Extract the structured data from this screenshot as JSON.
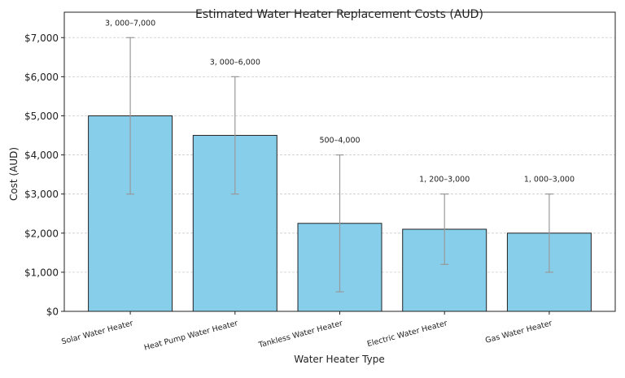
{
  "chart_data": {
    "type": "bar",
    "title": "Estimated Water Heater Replacement Costs (AUD)",
    "xlabel": "Water Heater Type",
    "ylabel": "Cost (AUD)",
    "categories": [
      "Solar Water Heater",
      "Heat Pump Water Heater",
      "Tankless Water Heater",
      "Electric Water Heater",
      "Gas Water Heater"
    ],
    "values": [
      5000,
      4500,
      2250,
      2100,
      2000
    ],
    "error_low": [
      3000,
      3000,
      500,
      1200,
      1000
    ],
    "error_high": [
      7000,
      6000,
      4000,
      3000,
      3000
    ],
    "range_labels": [
      "3, 000–7,000",
      "3, 000–6,000",
      "500–4,000",
      "1, 200–3,000",
      "1, 000–3,000"
    ],
    "ylim": [
      0,
      7650
    ],
    "yticks": [
      0,
      1000,
      2000,
      3000,
      4000,
      5000,
      6000,
      7000
    ],
    "ytick_labels": [
      "$0",
      "$1,000",
      "$2,000",
      "$3,000",
      "$4,000",
      "$5,000",
      "$6,000",
      "$7,000"
    ],
    "grid": "y dashed",
    "colors": {
      "bar": "#87ceeb",
      "bar_edge": "#222222",
      "errorbar": "#999999",
      "grid": "#cccccc"
    }
  }
}
